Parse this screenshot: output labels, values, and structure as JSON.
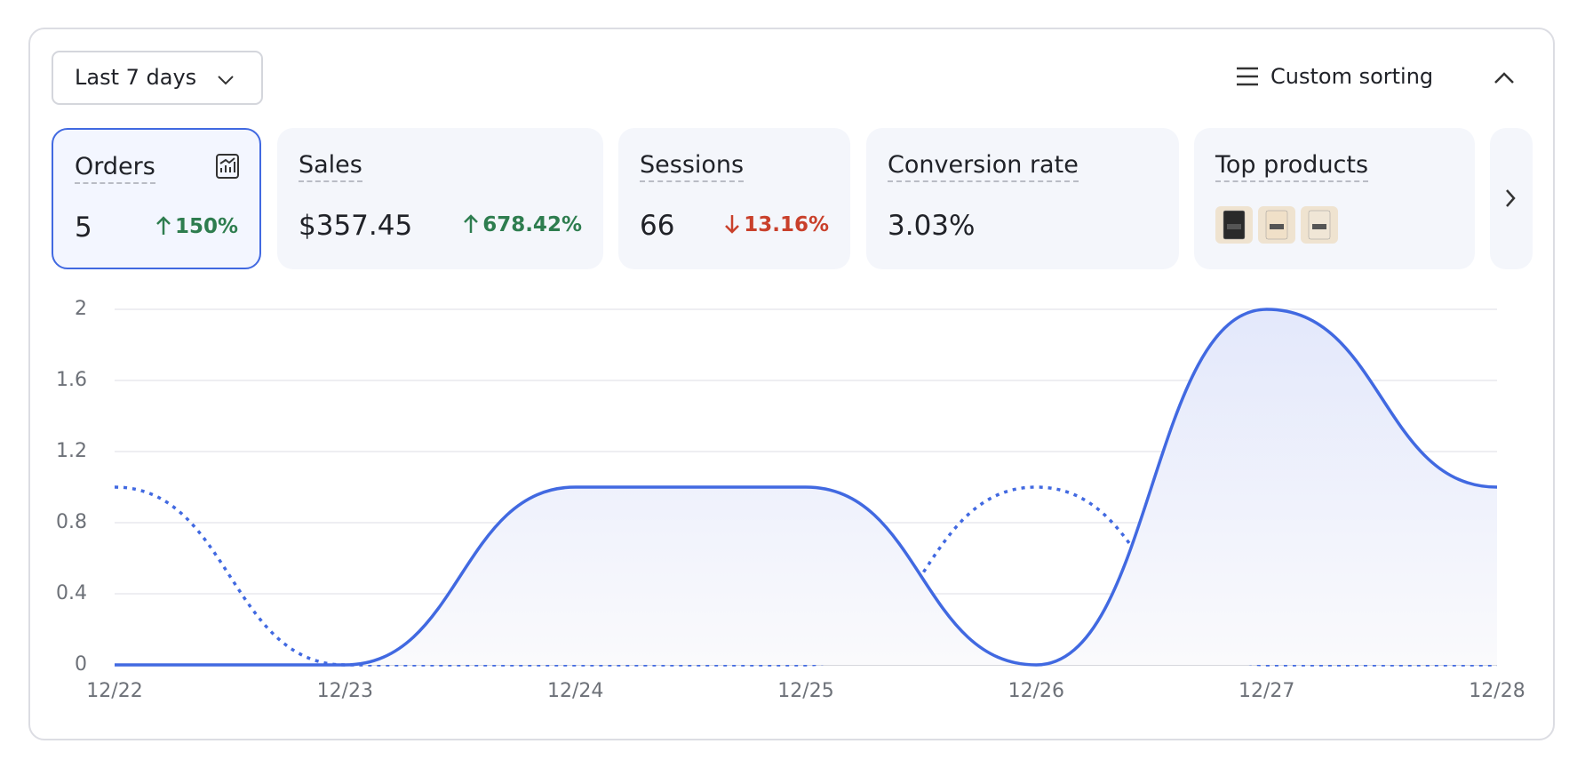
{
  "header": {
    "range": "Last 7 days",
    "sort": "Custom sorting"
  },
  "metrics": [
    {
      "label": "Orders",
      "value": "5",
      "change": "150%",
      "direction": "up"
    },
    {
      "label": "Sales",
      "value": "$357.45",
      "change": "678.42%",
      "direction": "up"
    },
    {
      "label": "Sessions",
      "value": "66",
      "change": "13.16%",
      "direction": "down"
    },
    {
      "label": "Conversion rate",
      "value": "3.03%"
    },
    {
      "label": "Top products"
    }
  ],
  "chart_data": {
    "type": "line",
    "categories": [
      "12/22",
      "12/23",
      "12/24",
      "12/25",
      "12/26",
      "12/27",
      "12/28"
    ],
    "series": [
      {
        "color": "#4169e1",
        "values": [
          0,
          0,
          1,
          1,
          0,
          2,
          1
        ],
        "dash": false,
        "area": true
      },
      {
        "color": "#4169e1",
        "values": [
          1,
          0,
          0,
          0,
          1,
          0,
          0
        ],
        "dash": true,
        "area": false
      }
    ],
    "ylim": [
      0,
      2
    ],
    "yticks": [
      0,
      0.4,
      0.8,
      1.2,
      1.6,
      2
    ],
    "grid": true
  }
}
